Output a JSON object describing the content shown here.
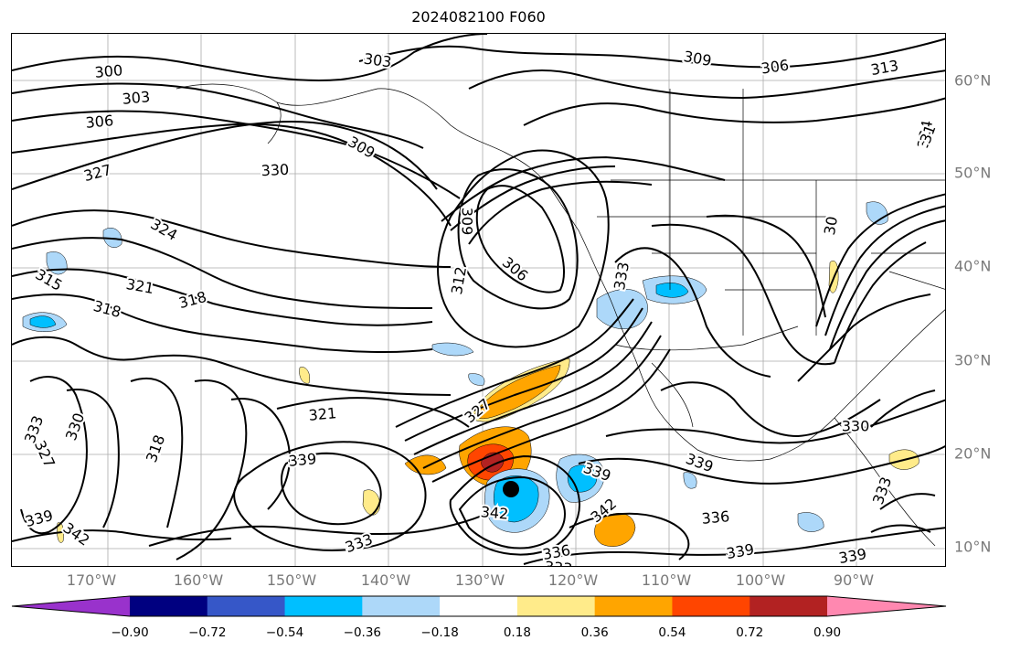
{
  "title": "2024082100 F060",
  "lon_labels": [
    "170°W",
    "160°W",
    "150°W",
    "140°W",
    "130°W",
    "120°W",
    "110°W",
    "100°W",
    "90°W"
  ],
  "lat_labels": [
    "60°N",
    "50°N",
    "40°N",
    "30°N",
    "20°N",
    "10°N"
  ],
  "colorbar": {
    "tick_labels": [
      "−0.90",
      "−0.72",
      "−0.54",
      "−0.36",
      "−0.18",
      "0.18",
      "0.36",
      "0.54",
      "0.72",
      "0.90"
    ],
    "under_color": "#9932cc",
    "colors": [
      "#000080",
      "#3657c8",
      "#00bfff",
      "#add8f9",
      "#ffffff",
      "#ffeb8a",
      "#ffa500",
      "#ff4500",
      "#b22222"
    ],
    "over_color": "#ff88b0"
  },
  "contour_labels": [
    {
      "text": "300"
    },
    {
      "text": "303"
    },
    {
      "text": "306"
    },
    {
      "text": "303"
    },
    {
      "text": "309"
    },
    {
      "text": "306"
    },
    {
      "text": "313"
    },
    {
      "text": "309"
    },
    {
      "text": "327"
    },
    {
      "text": "330"
    },
    {
      "text": "324"
    },
    {
      "text": "315"
    },
    {
      "text": "321"
    },
    {
      "text": "318"
    },
    {
      "text": "318"
    },
    {
      "text": "309"
    },
    {
      "text": "306"
    },
    {
      "text": "312"
    },
    {
      "text": "333"
    },
    {
      "text": "324"
    },
    {
      "text": "321"
    },
    {
      "text": "327"
    },
    {
      "text": "333"
    },
    {
      "text": "330"
    },
    {
      "text": "327"
    },
    {
      "text": "318"
    },
    {
      "text": "339"
    },
    {
      "text": "339"
    },
    {
      "text": "342"
    },
    {
      "text": "339"
    },
    {
      "text": "342"
    },
    {
      "text": "336"
    },
    {
      "text": "333"
    },
    {
      "text": "336"
    },
    {
      "text": "339"
    },
    {
      "text": "339"
    },
    {
      "text": "330"
    },
    {
      "text": "333"
    },
    {
      "text": "339"
    },
    {
      "text": "342"
    },
    {
      "text": "333"
    },
    {
      "text": "30"
    },
    {
      "text": "31"
    }
  ],
  "marker": "storm-center-dot"
}
